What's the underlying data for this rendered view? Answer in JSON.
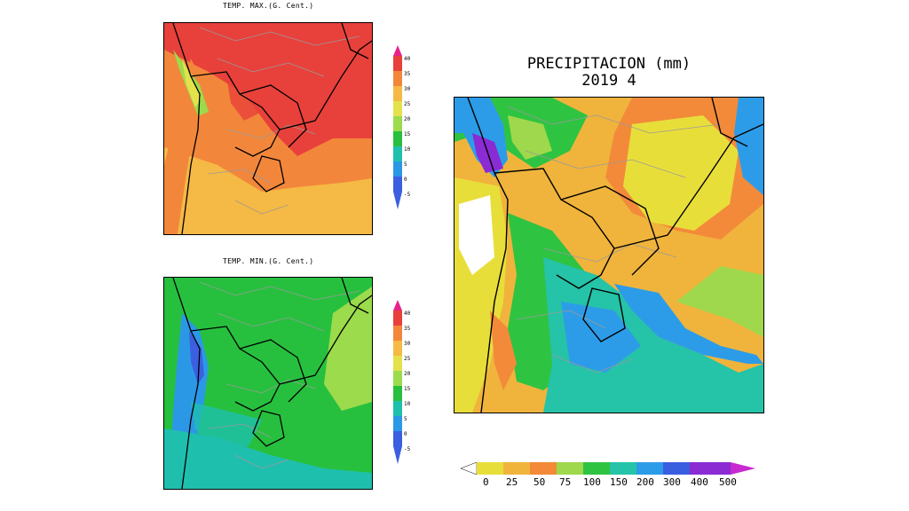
{
  "tmax": {
    "title": "TEMP. MAX.(G. Cent.)",
    "colorbar_labels": [
      "40",
      "35",
      "30",
      "25",
      "20",
      "15",
      "10",
      "5",
      "0",
      "-5"
    ]
  },
  "tmin": {
    "title": "TEMP. MIN.(G. Cent.)",
    "colorbar_labels": [
      "40",
      "35",
      "30",
      "25",
      "20",
      "15",
      "10",
      "5",
      "0",
      "-5"
    ]
  },
  "precip": {
    "title_line1": "PRECIPITACION (mm)",
    "title_line2": "2019  4",
    "colorbar_labels": [
      "0",
      "25",
      "50",
      "75",
      "100",
      "150",
      "200",
      "300",
      "400",
      "500"
    ]
  },
  "temp_colors": [
    "#e7238a",
    "#e8413b",
    "#f2873b",
    "#f5b945",
    "#e3e24a",
    "#9bdb4c",
    "#27c03e",
    "#1fbfae",
    "#2b98e6",
    "#3b5fe0"
  ],
  "precip_colors": [
    "#ffffff",
    "#e8de3a",
    "#f0b43c",
    "#f38a3a",
    "#9fd84c",
    "#2fc342",
    "#25c3a8",
    "#2d9ce8",
    "#3a5ee0",
    "#8a2bd4",
    "#c62ad0"
  ]
}
